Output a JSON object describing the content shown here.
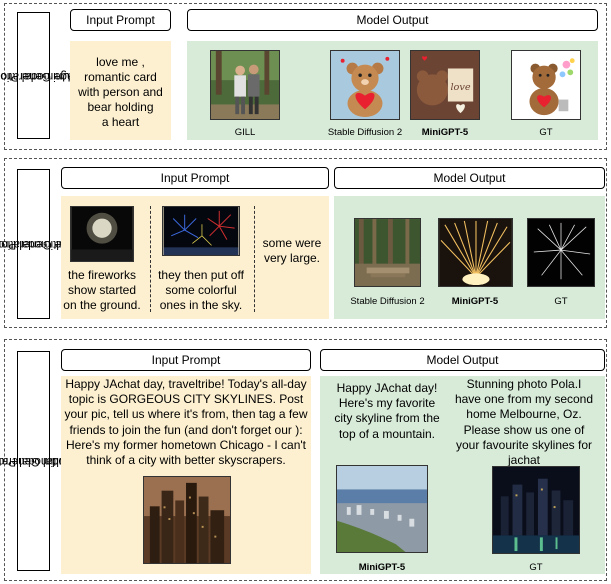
{
  "panel1": {
    "side_label_line1": "Unimodal Prompt",
    "side_label_line2": "Image Generation",
    "input_header": "Input Prompt",
    "output_header": "Model Output",
    "prompt_lines": [
      "love me ,",
      "romantic card",
      "with person and",
      "bear holding",
      "a heart"
    ],
    "captions": [
      "GILL",
      "Stable Diffusion 2",
      "MiniGPT-5",
      "GT"
    ]
  },
  "panel2": {
    "side_label_line1": "Multimodal Prompt",
    "side_label_line2": "Image Generation",
    "input_header": "Input Prompt",
    "output_header": "Model Output",
    "prompt1_lines": [
      "the fireworks",
      "show started",
      "on the ground."
    ],
    "prompt2_lines": [
      "they then put off",
      "some colorful",
      "ones in the sky."
    ],
    "prompt3_lines": [
      "some were",
      "very large."
    ],
    "captions": [
      "Stable Diffusion 2",
      "MiniGPT-5",
      "GT"
    ]
  },
  "panel3": {
    "side_label_line1": "Multimodal Prompt",
    "side_label_line2": "Multimodal Generation",
    "input_header": "Input Prompt",
    "output_header": "Model Output",
    "prompt_lines": [
      "Happy JAchat day, traveltribe! Today's all-day",
      "topic is GORGEOUS CITY SKYLINES. Post",
      "your pic, tell us where it's from, then tag a few",
      "friends to join the fun (and don't forget our ):",
      "Here's my former hometown Chicago - I can't",
      "think of a city with better skyscrapers."
    ],
    "minigpt_lines": [
      "Happy JAchat day!",
      "Here's my favorite",
      "city skyline from the",
      "top of a mountain."
    ],
    "gt_lines": [
      "Stunning photo Pola.I",
      "have one from my second",
      "home Melbourne, Oz.",
      "Please show us one of",
      "your favourite skylines for",
      "jachat"
    ],
    "captions": [
      "MiniGPT-5",
      "GT"
    ]
  },
  "colors": {
    "input_bg": "#fdf0d0",
    "output_bg": "#d8ebd9"
  }
}
